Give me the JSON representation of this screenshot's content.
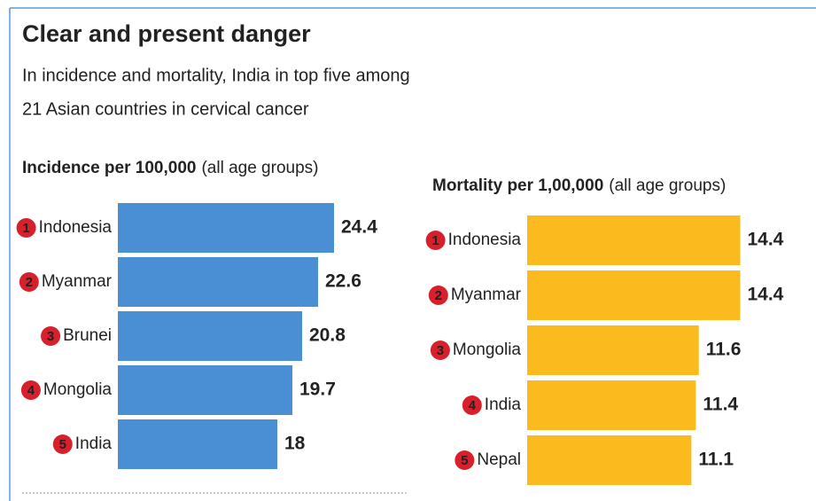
{
  "title": "Clear and present danger",
  "subtitle": [
    "In incidence and mortality, India in top five among",
    "21 Asian countries in cervical cancer"
  ],
  "chart_data": [
    {
      "type": "bar",
      "orientation": "horizontal",
      "title": "Incidence per 100,000",
      "subtitle": "(all age groups)",
      "ranks": [
        1,
        2,
        3,
        4,
        5
      ],
      "categories": [
        "Indonesia",
        "Myanmar",
        "Brunei",
        "Mongolia",
        "India"
      ],
      "values": [
        24.4,
        22.6,
        20.8,
        19.7,
        18
      ],
      "color": "#4a8fd4"
    },
    {
      "type": "bar",
      "orientation": "horizontal",
      "title": "Mortality per 1,00,000",
      "subtitle": "(all age groups)",
      "ranks": [
        1,
        2,
        3,
        4,
        5
      ],
      "categories": [
        "Indonesia",
        "Myanmar",
        "Mongolia",
        "India",
        "Nepal"
      ],
      "values": [
        14.4,
        14.4,
        11.6,
        11.4,
        11.1
      ],
      "color": "#fbbb1e"
    }
  ]
}
